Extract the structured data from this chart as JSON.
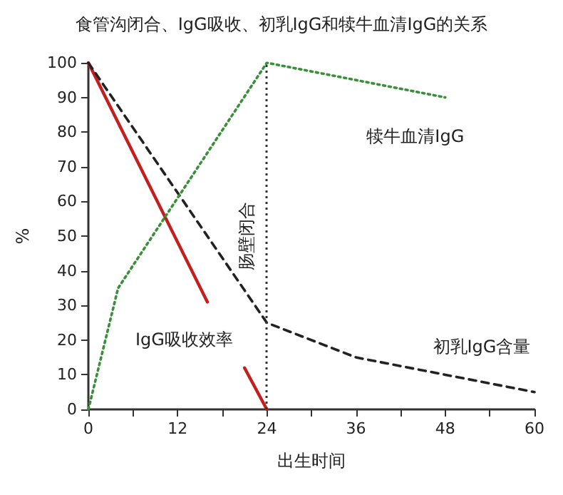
{
  "chart_data": {
    "type": "line",
    "title": "食管沟闭合、IgG吸收、初乳IgG和犊牛血清IgG的关系",
    "xlabel": "出生时间",
    "ylabel": "%",
    "xlim": [
      0,
      60
    ],
    "xticks": [
      0,
      12,
      24,
      36,
      48,
      60
    ],
    "ylim": [
      0,
      100
    ],
    "yticks": [
      0,
      10,
      20,
      30,
      40,
      50,
      60,
      70,
      80,
      90,
      100
    ],
    "grid": false,
    "legend": false,
    "marker": "none",
    "series": [
      {
        "name": "IgG吸收效率",
        "color": "#c41e1e",
        "line_style": "solid",
        "x": [
          0,
          16,
          18,
          21,
          24
        ],
        "values": [
          100,
          31,
          null,
          12,
          0
        ]
      },
      {
        "name": "初乳IgG含量",
        "color": "#222222",
        "line_style": "dashed",
        "x": [
          0,
          24,
          36,
          48,
          60
        ],
        "values": [
          100,
          25,
          15,
          10,
          5
        ]
      },
      {
        "name": "犊牛血清IgG",
        "color": "#3a8f3a",
        "line_style": "dotted",
        "x": [
          0,
          4,
          24,
          48
        ],
        "values": [
          0,
          35,
          100,
          90
        ]
      }
    ],
    "ref_lines": [
      {
        "axis": "x",
        "value": 24,
        "label": "肠壁闭合",
        "color": "#333333",
        "line_style": "dotted"
      }
    ]
  }
}
